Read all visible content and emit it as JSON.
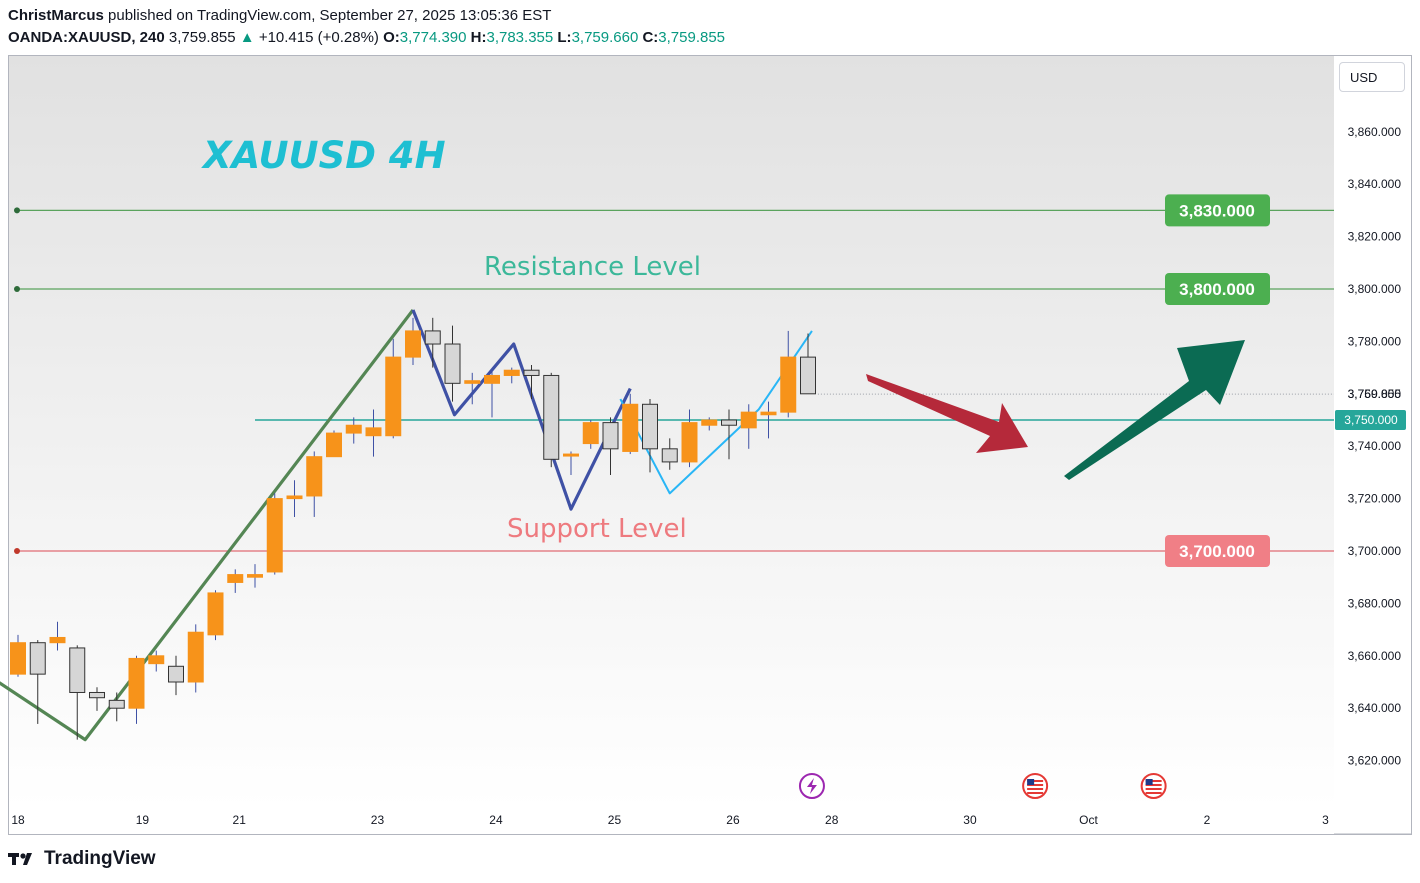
{
  "header": {
    "author": "ChristMarcus",
    "published_text": "published on TradingView.com, September 27, 2025 13:05:36 EST",
    "symbol": "OANDA:XAUUSD, 240",
    "last": "3,759.855",
    "change_arrow": "▲",
    "change": "+10.415 (+0.28%)",
    "o_label": "O:",
    "o_value": "3,774.390",
    "h_label": "H:",
    "h_value": "3,783.355",
    "l_label": "L:",
    "l_value": "3,759.660",
    "c_label": "C:",
    "c_value": "3,759.855"
  },
  "currency_button": "USD",
  "footer": {
    "brand": "TradingView",
    "logo_icon": "tradingview-logo-icon"
  },
  "colors": {
    "up": "#f7931a",
    "down": "#d6d6d6",
    "candle_border": "#333333",
    "resistance": "#5aa35d",
    "support": "#e06c75",
    "pivot": "#26a69a",
    "zigzag_green": "#548654",
    "zigzag_blue": "#3f51a5",
    "zigzag_cyan": "#29b6f6",
    "title": "#1ebfd2",
    "arrow_red": "#b5293a",
    "arrow_green": "#0b6b53"
  },
  "chart_data": {
    "type": "candlestick",
    "title": "XAUUSD 4H",
    "ylim": [
      3602,
      3878
    ],
    "y_ticks": [
      3620,
      3640,
      3660,
      3680,
      3700,
      3720,
      3740,
      3760,
      3780,
      3800,
      3820,
      3840,
      3860
    ],
    "y_tick_labels": [
      "3,620.000",
      "3,640.000",
      "3,660.000",
      "3,680.000",
      "3,700.000",
      "3,720.000",
      "3,740.000",
      "3,760.000",
      "3,780.000",
      "3,800.000",
      "3,820.000",
      "3,840.000",
      "3,860.000"
    ],
    "x_ticks": [
      {
        "label": "18",
        "bar": 0
      },
      {
        "label": "19",
        "bar": 6.3
      },
      {
        "label": "21",
        "bar": 11.2
      },
      {
        "label": "23",
        "bar": 18.2
      },
      {
        "label": "24",
        "bar": 24.2
      },
      {
        "label": "25",
        "bar": 30.2
      },
      {
        "label": "26",
        "bar": 36.2
      },
      {
        "label": "28",
        "bar": 41.2
      },
      {
        "label": "30",
        "bar": 48.2
      },
      {
        "label": "Oct",
        "bar": 54.2
      },
      {
        "label": "2",
        "bar": 60.2
      },
      {
        "label": "3",
        "bar": 66.2
      }
    ],
    "candles": [
      {
        "o": 3653,
        "h": 3668,
        "l": 3652,
        "c": 3665
      },
      {
        "o": 3665,
        "h": 3666,
        "l": 3634,
        "c": 3653
      },
      {
        "o": 3665,
        "h": 3673,
        "l": 3662,
        "c": 3667
      },
      {
        "o": 3663,
        "h": 3664,
        "l": 3628,
        "c": 3646
      },
      {
        "o": 3646,
        "h": 3648,
        "l": 3639,
        "c": 3644
      },
      {
        "o": 3643,
        "h": 3646,
        "l": 3635,
        "c": 3640
      },
      {
        "o": 3640,
        "h": 3660,
        "l": 3634,
        "c": 3659
      },
      {
        "o": 3657,
        "h": 3662,
        "l": 3654,
        "c": 3660
      },
      {
        "o": 3656,
        "h": 3660,
        "l": 3645,
        "c": 3650
      },
      {
        "o": 3650,
        "h": 3672,
        "l": 3646,
        "c": 3669
      },
      {
        "o": 3668,
        "h": 3685,
        "l": 3666,
        "c": 3684
      },
      {
        "o": 3688,
        "h": 3693,
        "l": 3684,
        "c": 3691
      },
      {
        "o": 3690,
        "h": 3695,
        "l": 3686,
        "c": 3691
      },
      {
        "o": 3692,
        "h": 3722,
        "l": 3691,
        "c": 3720
      },
      {
        "o": 3720,
        "h": 3727,
        "l": 3713,
        "c": 3721
      },
      {
        "o": 3721,
        "h": 3738,
        "l": 3713,
        "c": 3736
      },
      {
        "o": 3736,
        "h": 3746,
        "l": 3736,
        "c": 3745
      },
      {
        "o": 3745,
        "h": 3751,
        "l": 3741,
        "c": 3748
      },
      {
        "o": 3744,
        "h": 3754,
        "l": 3736,
        "c": 3747
      },
      {
        "o": 3744,
        "h": 3781,
        "l": 3743,
        "c": 3774
      },
      {
        "o": 3774,
        "h": 3789,
        "l": 3771,
        "c": 3784
      },
      {
        "o": 3784,
        "h": 3789,
        "l": 3770,
        "c": 3779
      },
      {
        "o": 3779,
        "h": 3786,
        "l": 3757,
        "c": 3764
      },
      {
        "o": 3764,
        "h": 3768,
        "l": 3756,
        "c": 3765
      },
      {
        "o": 3764,
        "h": 3769,
        "l": 3751,
        "c": 3767
      },
      {
        "o": 3767,
        "h": 3770,
        "l": 3764,
        "c": 3769
      },
      {
        "o": 3769,
        "h": 3771,
        "l": 3758,
        "c": 3767
      },
      {
        "o": 3767,
        "h": 3768,
        "l": 3732,
        "c": 3735
      },
      {
        "o": 3737,
        "h": 3738,
        "l": 3729,
        "c": 3737
      },
      {
        "o": 3741,
        "h": 3750,
        "l": 3739,
        "c": 3749
      },
      {
        "o": 3749,
        "h": 3751,
        "l": 3729,
        "c": 3739
      },
      {
        "o": 3738,
        "h": 3760,
        "l": 3737,
        "c": 3756
      },
      {
        "o": 3756,
        "h": 3758,
        "l": 3730,
        "c": 3739
      },
      {
        "o": 3739,
        "h": 3743,
        "l": 3731,
        "c": 3734
      },
      {
        "o": 3734,
        "h": 3754,
        "l": 3732,
        "c": 3749
      },
      {
        "o": 3748,
        "h": 3751,
        "l": 3746,
        "c": 3750
      },
      {
        "o": 3750,
        "h": 3754,
        "l": 3735,
        "c": 3748
      },
      {
        "o": 3747,
        "h": 3756,
        "l": 3739,
        "c": 3753
      },
      {
        "o": 3752,
        "h": 3757,
        "l": 3743,
        "c": 3753
      },
      {
        "o": 3753,
        "h": 3784,
        "l": 3751,
        "c": 3774
      },
      {
        "o": 3774,
        "h": 3783,
        "l": 3760,
        "c": 3760
      }
    ],
    "levels": [
      {
        "name": "resistance_upper",
        "value": 3830,
        "label": "3,830.000"
      },
      {
        "name": "resistance",
        "value": 3800,
        "label": "3,800.000"
      },
      {
        "name": "support",
        "value": 3700,
        "label": "3,700.000"
      }
    ],
    "pivot_line": {
      "value": 3750,
      "label": "3,750.000",
      "from_bar": 12
    },
    "last_price": {
      "value": 3759.855,
      "label": "3,759.855"
    },
    "zigzags": {
      "green": [
        {
          "bar": -1.2,
          "price": 3651
        },
        {
          "bar": 3.4,
          "price": 3628
        },
        {
          "bar": 20.0,
          "price": 3792
        }
      ],
      "blue": [
        {
          "bar": 20.0,
          "price": 3792
        },
        {
          "bar": 22.1,
          "price": 3752
        },
        {
          "bar": 25.1,
          "price": 3779
        },
        {
          "bar": 28.0,
          "price": 3716
        },
        {
          "bar": 31.0,
          "price": 3762
        }
      ],
      "cyan": [
        {
          "bar": 30.5,
          "price": 3758
        },
        {
          "bar": 33.0,
          "price": 3722
        },
        {
          "bar": 37.5,
          "price": 3754
        },
        {
          "bar": 40.2,
          "price": 3784
        }
      ]
    },
    "annotations": {
      "resistance_text": "Resistance Level",
      "support_text": "Support Level"
    },
    "event_icons": [
      {
        "bar": 40.2,
        "type": "lightning-event-icon"
      },
      {
        "bar": 51.5,
        "type": "us-flag-event-icon"
      },
      {
        "bar": 57.5,
        "type": "us-flag-event-icon"
      }
    ]
  }
}
